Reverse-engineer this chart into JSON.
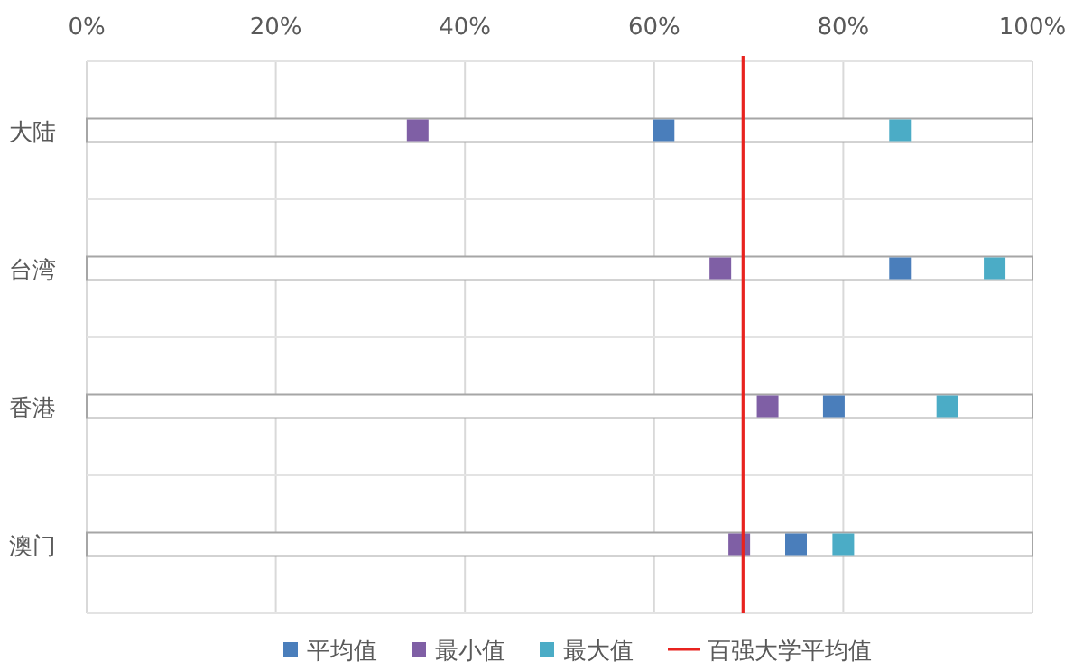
{
  "chart_data": {
    "type": "scatter",
    "orientation": "horizontal",
    "categories": [
      "大陆",
      "台湾",
      "香港",
      "澳门"
    ],
    "series": [
      {
        "type": "bar",
        "color": "#ffffff",
        "values": [
          100,
          100,
          100,
          100
        ]
      },
      {
        "name": "平均值",
        "color": "#4a7ebb",
        "values": [
          61,
          86,
          79,
          75
        ]
      },
      {
        "name": "最小值",
        "color": "#7f5fa5",
        "values": [
          35,
          67,
          72,
          69
        ]
      },
      {
        "name": "最大值",
        "color": "#4bacc6",
        "values": [
          86,
          96,
          91,
          80
        ]
      }
    ],
    "marker": "square",
    "xlim": [
      0,
      100
    ],
    "xticks": [
      {
        "value": 0,
        "label": "0%"
      },
      {
        "value": 20,
        "label": "20%"
      },
      {
        "value": 40,
        "label": "40%"
      },
      {
        "value": 60,
        "label": "60%"
      },
      {
        "value": 80,
        "label": "80%"
      },
      {
        "value": 100,
        "label": "100%"
      }
    ],
    "ref_lines": [
      {
        "axis": "x",
        "value": 69.4,
        "label": "百强大学平均值",
        "color": "#e8231f"
      }
    ],
    "grid": true,
    "legend": "bottom"
  }
}
